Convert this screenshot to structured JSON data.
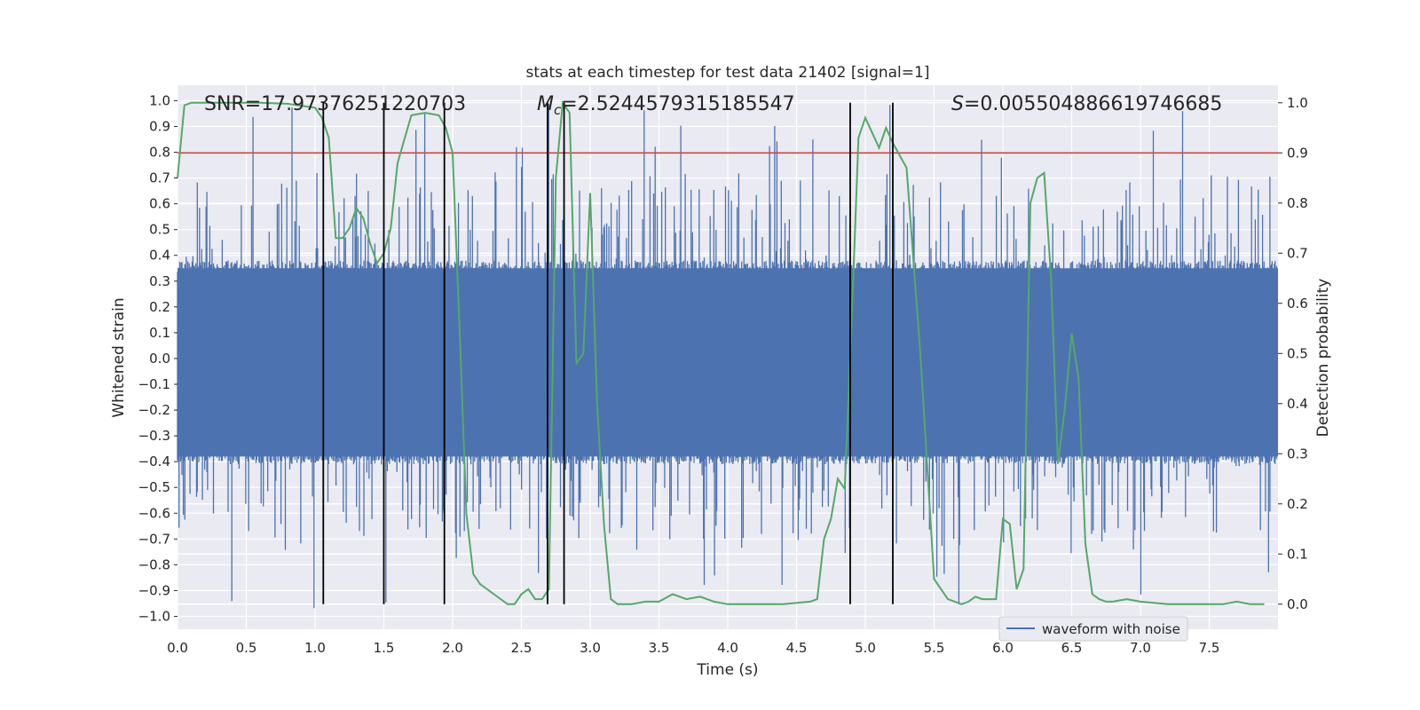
{
  "chart_data": {
    "type": "line",
    "title": "stats at each timestep for test data 21402 [signal=1]",
    "xlabel": "Time (s)",
    "ylabel": "Whitened strain",
    "y2label": "Detection probability",
    "xlim": [
      0,
      8
    ],
    "ylim": [
      -1.05,
      1.06
    ],
    "y2lim": [
      -0.05,
      1.035
    ],
    "xticks": [
      0.0,
      0.5,
      1.0,
      1.5,
      2.0,
      2.5,
      3.0,
      3.5,
      4.0,
      4.5,
      5.0,
      5.5,
      6.0,
      6.5,
      7.0,
      7.5
    ],
    "xtick_labels": [
      "0.0",
      "0.5",
      "1.0",
      "1.5",
      "2.0",
      "2.5",
      "3.0",
      "3.5",
      "4.0",
      "4.5",
      "5.0",
      "5.5",
      "6.0",
      "6.5",
      "7.0",
      "7.5"
    ],
    "yticks": [
      1.0,
      0.9,
      0.8,
      0.7,
      0.6,
      0.5,
      0.4,
      0.3,
      0.2,
      0.1,
      0.0,
      -0.1,
      -0.2,
      -0.3,
      -0.4,
      -0.5,
      -0.6,
      -0.7,
      -0.8,
      -0.9,
      -1.0
    ],
    "ytick_labels": [
      "1.0",
      "0.9",
      "0.8",
      "0.7",
      "0.6",
      "0.5",
      "0.4",
      "0.3",
      "0.2",
      "0.1",
      "0.0",
      "−0.1",
      "−0.2",
      "−0.3",
      "−0.4",
      "−0.5",
      "−0.6",
      "−0.7",
      "−0.8",
      "−0.9",
      "−1.0"
    ],
    "y2ticks": [
      1.0,
      0.9,
      0.8,
      0.7,
      0.6,
      0.5,
      0.4,
      0.3,
      0.2,
      0.1,
      0.0
    ],
    "y2tick_labels": [
      "1.0",
      "0.9",
      "0.8",
      "0.7",
      "0.6",
      "0.5",
      "0.4",
      "0.3",
      "0.2",
      "0.1",
      "0.0"
    ],
    "waveform": {
      "name": "waveform with noise",
      "color": "#4c72b0",
      "typical_upper": 0.38,
      "typical_lower": -0.41,
      "peak_max": 1.0,
      "peak_min": -0.98
    },
    "threshold": {
      "value_prob": 0.9,
      "color": "#c44e52"
    },
    "probability": {
      "color": "#55a868",
      "t": [
        0.0,
        0.05,
        0.1,
        0.2,
        0.4,
        0.6,
        0.8,
        1.0,
        1.05,
        1.1,
        1.15,
        1.2,
        1.25,
        1.3,
        1.35,
        1.4,
        1.45,
        1.5,
        1.55,
        1.6,
        1.7,
        1.8,
        1.9,
        1.95,
        2.0,
        2.05,
        2.1,
        2.15,
        2.2,
        2.3,
        2.4,
        2.45,
        2.5,
        2.55,
        2.6,
        2.65,
        2.7,
        2.75,
        2.8,
        2.85,
        2.9,
        2.95,
        3.0,
        3.05,
        3.1,
        3.15,
        3.2,
        3.3,
        3.4,
        3.5,
        3.6,
        3.7,
        3.8,
        3.9,
        4.0,
        4.2,
        4.4,
        4.6,
        4.65,
        4.7,
        4.75,
        4.8,
        4.85,
        4.9,
        4.95,
        5.0,
        5.05,
        5.1,
        5.15,
        5.2,
        5.3,
        5.4,
        5.5,
        5.6,
        5.7,
        5.75,
        5.8,
        5.85,
        5.9,
        5.95,
        6.0,
        6.05,
        6.1,
        6.15,
        6.2,
        6.25,
        6.3,
        6.35,
        6.4,
        6.45,
        6.5,
        6.55,
        6.6,
        6.65,
        6.7,
        6.75,
        6.8,
        6.9,
        7.0,
        7.2,
        7.4,
        7.6,
        7.7,
        7.8,
        7.9
      ],
      "p": [
        0.85,
        0.995,
        1.0,
        1.0,
        1.0,
        1.0,
        0.998,
        0.99,
        0.97,
        0.93,
        0.73,
        0.73,
        0.75,
        0.79,
        0.77,
        0.72,
        0.68,
        0.7,
        0.75,
        0.88,
        0.975,
        0.98,
        0.975,
        0.95,
        0.9,
        0.55,
        0.18,
        0.06,
        0.04,
        0.02,
        0.0,
        0.0,
        0.02,
        0.03,
        0.01,
        0.01,
        0.03,
        0.85,
        1.0,
        0.98,
        0.48,
        0.5,
        0.82,
        0.4,
        0.16,
        0.01,
        0.0,
        0.0,
        0.005,
        0.005,
        0.02,
        0.01,
        0.015,
        0.005,
        0.0,
        0.0,
        0.0,
        0.005,
        0.01,
        0.13,
        0.17,
        0.25,
        0.23,
        0.56,
        0.93,
        0.97,
        0.94,
        0.91,
        0.95,
        0.92,
        0.87,
        0.5,
        0.05,
        0.01,
        0.0,
        0.005,
        0.015,
        0.01,
        0.01,
        0.01,
        0.17,
        0.16,
        0.03,
        0.07,
        0.8,
        0.85,
        0.86,
        0.65,
        0.28,
        0.39,
        0.54,
        0.45,
        0.12,
        0.02,
        0.01,
        0.005,
        0.005,
        0.01,
        0.005,
        0.0,
        0.0,
        0.0,
        0.005,
        0.0,
        0.0
      ]
    },
    "vlines_t": [
      1.06,
      1.5,
      1.94,
      2.69,
      2.81,
      4.89,
      5.2
    ],
    "annotations": [
      {
        "label": "SNR=17.97376251220703",
        "prefix": "SNR",
        "value": "17.97376251220703"
      },
      {
        "label": "Mc=2.5244579315185547",
        "prefix": "M",
        "subscript": "c",
        "value": "2.5244579315185547"
      },
      {
        "label": "S=0.005504886619746685",
        "prefix": "S",
        "value": "0.005504886619746685"
      }
    ],
    "legend": {
      "entries": [
        "waveform with noise"
      ],
      "location": "lower-right"
    }
  }
}
